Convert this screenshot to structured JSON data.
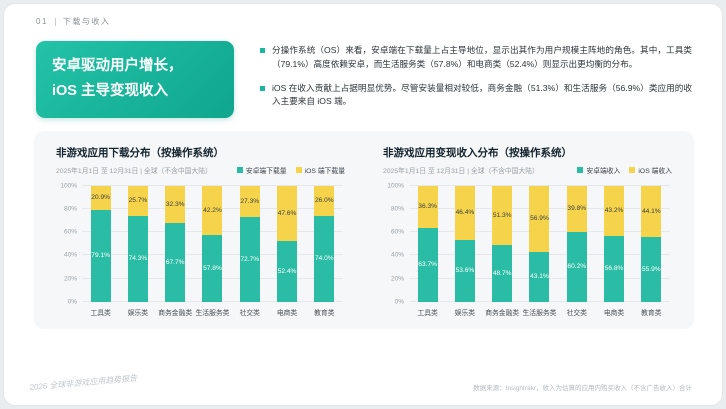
{
  "header": {
    "number": "01",
    "title": "下载与收入"
  },
  "headline": {
    "line1": "安卓驱动用户增长，",
    "line2": "iOS 主导变现收入"
  },
  "bullets": [
    "分操作系统（OS）来看，安卓端在下载量上占主导地位，显示出其作为用户规模主阵地的角色。其中，工具类（79.1%）高度依赖安卓，而生活服务类（57.8%）和电商类（52.4%）则显示出更均衡的分布。",
    "iOS 在收入贡献上占据明显优势。尽管安装量相对较低，商务金融（51.3%）和生活服务（56.9%）类应用的收入主要来自 iOS 端。"
  ],
  "footer": {
    "left": "2026 全球非游戏应用趋势报告",
    "right": "数据来源：Insightrakr，收入为估算的应用内购买收入（不含广告收入）合计"
  },
  "colors": {
    "android_teal": "#2BBCA5",
    "ios_yellow": "#F5D34B",
    "headline_bg": "#17B399"
  },
  "chart_data": [
    {
      "type": "bar",
      "stacked": true,
      "title": "非游戏应用下载分布（按操作系统）",
      "subtitle": "2025年1月1日 至 12月31日 | 全球（不含中国大陆）",
      "categories": [
        "工具类",
        "娱乐类",
        "商务金融类",
        "生活服务类",
        "社交类",
        "电商类",
        "教育类"
      ],
      "series": [
        {
          "name": "安卓端下载量",
          "color": "#2BBCA5",
          "label_color": "#ffffff",
          "values": [
            79.1,
            74.3,
            67.7,
            57.8,
            72.7,
            52.4,
            74.0
          ]
        },
        {
          "name": "iOS 端下载量",
          "color": "#F5D34B",
          "label_color": "#3a3f44",
          "values": [
            20.9,
            25.7,
            32.3,
            42.2,
            27.3,
            47.6,
            26.0
          ]
        }
      ],
      "ylim": [
        0,
        100
      ],
      "yticks": [
        "0%",
        "20%",
        "40%",
        "60%",
        "80%",
        "100%"
      ],
      "legend_position": "top-right",
      "grid": true
    },
    {
      "type": "bar",
      "stacked": true,
      "title": "非游戏应用变现收入分布（按操作系统）",
      "subtitle": "2025年1月1日 至 12月31日 | 全球（不含中国大陆）",
      "categories": [
        "工具类",
        "娱乐类",
        "商务金融类",
        "生活服务类",
        "社交类",
        "电商类",
        "教育类"
      ],
      "series": [
        {
          "name": "安卓端收入",
          "color": "#2BBCA5",
          "label_color": "#ffffff",
          "values": [
            63.7,
            53.6,
            48.7,
            43.1,
            60.2,
            56.8,
            55.9
          ]
        },
        {
          "name": "iOS 端收入",
          "color": "#F5D34B",
          "label_color": "#3a3f44",
          "values": [
            36.3,
            46.4,
            51.3,
            56.9,
            39.8,
            43.2,
            44.1
          ]
        }
      ],
      "ylim": [
        0,
        100
      ],
      "yticks": [
        "0%",
        "20%",
        "40%",
        "60%",
        "80%",
        "100%"
      ],
      "legend_position": "top-right",
      "grid": true
    }
  ]
}
